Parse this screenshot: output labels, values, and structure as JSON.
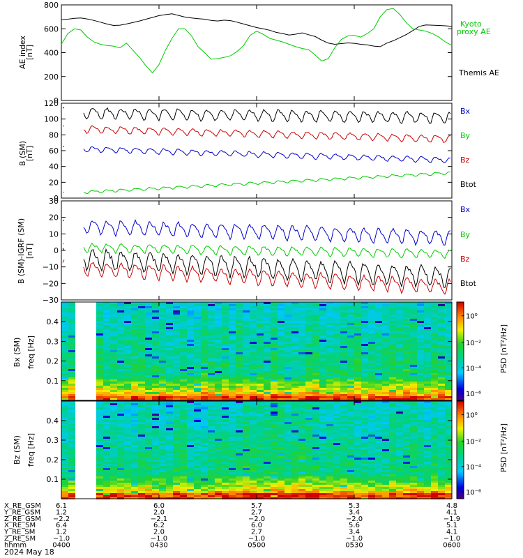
{
  "chart_data": [
    {
      "type": "line",
      "panel": "AE",
      "ylabel": "AE index",
      "yunit": "[nT]",
      "ylim": [
        0,
        800
      ],
      "yticks": [
        0,
        200,
        400,
        600,
        800
      ],
      "xlim": [
        "04:00",
        "06:00"
      ],
      "series": [
        {
          "name": "Themis AE",
          "color": "#000000",
          "x": [
            0,
            2,
            4,
            6,
            8,
            10,
            12,
            14,
            16,
            18,
            20,
            22,
            24,
            26,
            28,
            30,
            32,
            34,
            36,
            38,
            40,
            42,
            44,
            46,
            48,
            50,
            52,
            54,
            56,
            58,
            60,
            62,
            64,
            66,
            68,
            70,
            72,
            74,
            76,
            78,
            80,
            82,
            84,
            86,
            88,
            90,
            92,
            94,
            96,
            98,
            100,
            102,
            104,
            106,
            108,
            110,
            112,
            114,
            116,
            118,
            120
          ],
          "y": [
            675,
            680,
            688,
            690,
            682,
            670,
            655,
            640,
            628,
            630,
            640,
            652,
            665,
            680,
            695,
            710,
            718,
            725,
            712,
            698,
            690,
            685,
            680,
            670,
            665,
            672,
            668,
            655,
            640,
            625,
            610,
            600,
            588,
            570,
            560,
            548,
            555,
            565,
            550,
            535,
            505,
            480,
            470,
            476,
            482,
            478,
            470,
            465,
            455,
            450,
            480,
            500,
            525,
            552,
            585,
            620,
            632,
            630,
            628,
            625,
            620
          ]
        },
        {
          "name": "Kyoto proxy AE",
          "color": "#00cc00",
          "x": [
            0,
            2,
            4,
            6,
            8,
            10,
            12,
            14,
            16,
            18,
            20,
            22,
            24,
            26,
            28,
            30,
            32,
            34,
            36,
            38,
            40,
            42,
            44,
            46,
            48,
            50,
            52,
            54,
            56,
            58,
            60,
            62,
            64,
            66,
            68,
            70,
            72,
            74,
            76,
            78,
            80,
            82,
            84,
            86,
            88,
            90,
            92,
            94,
            96,
            98,
            100,
            102,
            104,
            106,
            108,
            110,
            112,
            114,
            116,
            118,
            120
          ],
          "y": [
            470,
            560,
            600,
            590,
            530,
            490,
            470,
            460,
            455,
            440,
            480,
            420,
            360,
            290,
            230,
            300,
            420,
            520,
            600,
            600,
            540,
            450,
            400,
            345,
            350,
            360,
            375,
            410,
            460,
            545,
            580,
            555,
            520,
            505,
            490,
            470,
            450,
            435,
            425,
            380,
            330,
            350,
            440,
            510,
            540,
            545,
            530,
            560,
            600,
            700,
            760,
            770,
            720,
            650,
            600,
            590,
            580,
            560,
            530,
            490,
            460
          ]
        }
      ]
    },
    {
      "type": "line",
      "panel": "B (SM)",
      "ylabel": "B (SM)",
      "yunit": "[nT]",
      "ylim": [
        0,
        120
      ],
      "yticks": [
        0,
        20,
        40,
        60,
        80,
        100,
        120
      ],
      "legend": [
        "Bx",
        "By",
        "Bz",
        "Btot"
      ],
      "legend_colors": [
        "#0000cc",
        "#00cc00",
        "#cc0000",
        "#000000"
      ],
      "series": [
        {
          "name": "Btot",
          "color": "#000000",
          "y_start": 108,
          "y_end": 102,
          "amplitude": 8
        },
        {
          "name": "Bz",
          "color": "#cc0000",
          "y_start": 88,
          "y_end": 75,
          "amplitude": 5
        },
        {
          "name": "Bx",
          "color": "#0000cc",
          "y_start": 63,
          "y_end": 48,
          "amplitude": 4
        },
        {
          "name": "By",
          "color": "#00cc00",
          "y_start": 6,
          "y_end": 32,
          "amplitude": 2
        }
      ]
    },
    {
      "type": "line",
      "panel": "B (SM)-IGRF (SM)",
      "ylabel": "B (SM)-IGRF (SM)",
      "yunit": "[nT]",
      "ylim": [
        -30,
        30
      ],
      "yticks": [
        -30,
        -20,
        -10,
        0,
        10,
        20,
        30
      ],
      "legend": [
        "Bx",
        "By",
        "Bz",
        "Btot"
      ],
      "legend_colors": [
        "#0000cc",
        "#00cc00",
        "#cc0000",
        "#000000"
      ],
      "series": [
        {
          "name": "Bx",
          "color": "#0000cc",
          "y_start": 15,
          "y_end": 8,
          "amplitude": 5
        },
        {
          "name": "By",
          "color": "#00cc00",
          "y_start": 2,
          "y_end": -2,
          "amplitude": 3
        },
        {
          "name": "Btot",
          "color": "#000000",
          "y_start": -4,
          "y_end": -16,
          "amplitude": 7
        },
        {
          "name": "Bz",
          "color": "#cc0000",
          "y_start": -10,
          "y_end": -22,
          "amplitude": 5
        }
      ]
    },
    {
      "type": "heatmap",
      "panel": "Bx (SM) spectrogram",
      "ylabel": "Bx (SM)",
      "ylabel2": "freq",
      "yunit": "[Hz]",
      "ylim": [
        0,
        0.5
      ],
      "yticks": [
        0.1,
        0.2,
        0.3,
        0.4
      ],
      "colorbar_label": "PSD [nT²/Hz]",
      "colorbar_ticks": [
        "10⁰",
        "10⁻²",
        "10⁻⁴",
        "10⁻⁶"
      ],
      "data_gap": [
        "04:01",
        "04:06"
      ]
    },
    {
      "type": "heatmap",
      "panel": "Bz (SM) spectrogram",
      "ylabel": "Bz (SM)",
      "ylabel2": "freq",
      "yunit": "[Hz]",
      "ylim": [
        0,
        0.5
      ],
      "yticks": [
        0.1,
        0.2,
        0.3,
        0.4
      ],
      "colorbar_label": "PSD [nT²/Hz]",
      "colorbar_ticks": [
        "10⁰",
        "10⁻²",
        "10⁻⁴",
        "10⁻⁶"
      ],
      "data_gap": [
        "04:01",
        "04:06"
      ]
    }
  ],
  "ae_legend": {
    "kyoto": "Kyoto",
    "kyoto2": "proxy AE",
    "themis": "Themis AE"
  },
  "ephemeris": {
    "labels": [
      "X_RE_GSM",
      "Y_RE_GSM",
      "Z_RE_GSM",
      "X_RE_SM",
      "Y_RE_SM",
      "Z_RE_SM",
      "hhmm"
    ],
    "columns": [
      [
        "6.1",
        "1.2",
        "−2.2",
        "6.4",
        "1.2",
        "−1.0",
        "0400"
      ],
      [
        "6.0",
        "2.0",
        "−2.1",
        "6.2",
        "2.0",
        "−1.0",
        "0430"
      ],
      [
        "5.7",
        "2.7",
        "−2.0",
        "6.0",
        "2.7",
        "−1.0",
        "0500"
      ],
      [
        "5.3",
        "3.4",
        "−2.0",
        "5.6",
        "3.4",
        "−1.0",
        "0530"
      ],
      [
        "4.8",
        "4.1",
        "−1.9",
        "5.1",
        "4.1",
        "−1.0",
        "0600"
      ]
    ],
    "date": "2024 May 18"
  }
}
